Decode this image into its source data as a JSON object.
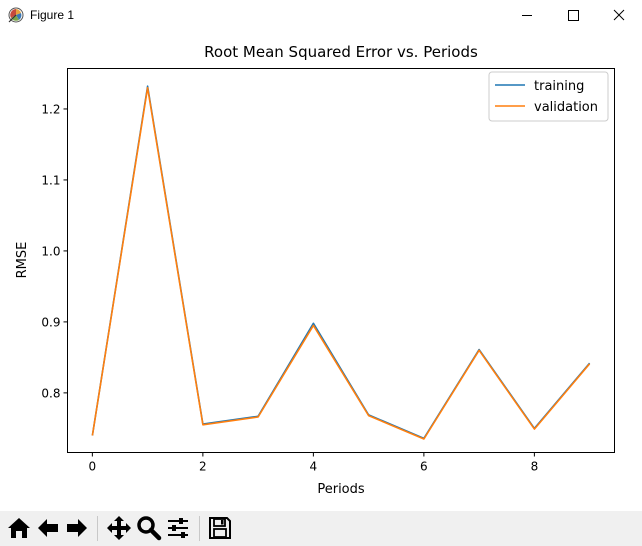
{
  "window": {
    "title": "Figure 1",
    "icons": {
      "app": "matplotlib-logo-icon",
      "minimize": "minimize-icon",
      "maximize": "maximize-icon",
      "close": "close-icon"
    }
  },
  "chart_data": {
    "type": "line",
    "title": "Root Mean Squared Error vs. Periods",
    "xlabel": "Periods",
    "ylabel": "RMSE",
    "xlim": [
      -0.45,
      9.45
    ],
    "ylim": [
      0.716,
      1.257
    ],
    "xticks": [
      0,
      2,
      4,
      6,
      8
    ],
    "yticks": [
      0.8,
      0.9,
      1.0,
      1.1,
      1.2
    ],
    "xtick_labels": [
      "0",
      "2",
      "4",
      "6",
      "8"
    ],
    "ytick_labels": [
      "0.8",
      "0.9",
      "1.0",
      "1.1",
      "1.2"
    ],
    "grid": false,
    "legend_position": "top-right",
    "x": [
      0,
      1,
      2,
      3,
      4,
      5,
      6,
      7,
      8,
      9
    ],
    "series": [
      {
        "name": "training",
        "color": "#1f77b4",
        "values": [
          0.74,
          1.232,
          0.756,
          0.767,
          0.898,
          0.769,
          0.736,
          0.861,
          0.75,
          0.842
        ]
      },
      {
        "name": "validation",
        "color": "#ff7f0e",
        "values": [
          0.74,
          1.23,
          0.755,
          0.766,
          0.895,
          0.768,
          0.735,
          0.86,
          0.749,
          0.841
        ]
      }
    ]
  },
  "toolbar": {
    "buttons": [
      {
        "name": "home-button",
        "icon": "home-icon"
      },
      {
        "name": "back-button",
        "icon": "arrow-left-icon"
      },
      {
        "name": "forward-button",
        "icon": "arrow-right-icon"
      },
      {
        "name": "pan-button",
        "icon": "move-icon"
      },
      {
        "name": "zoom-button",
        "icon": "zoom-icon"
      },
      {
        "name": "subplots-button",
        "icon": "sliders-icon"
      },
      {
        "name": "save-button",
        "icon": "save-icon"
      }
    ]
  }
}
